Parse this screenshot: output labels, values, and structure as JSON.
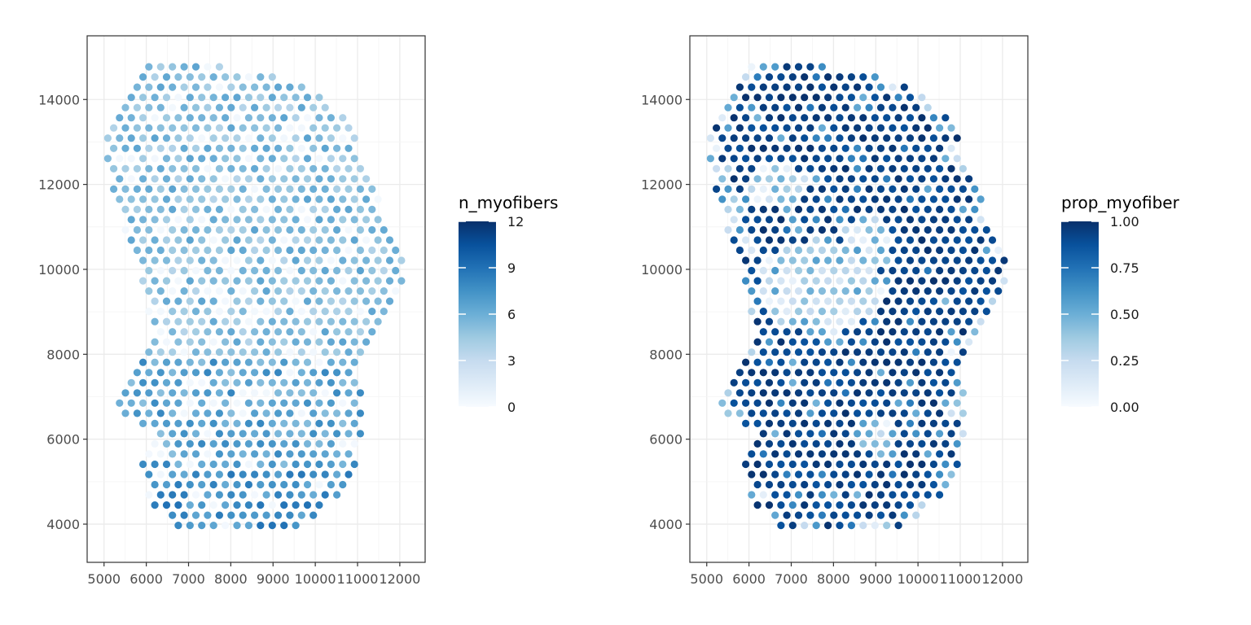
{
  "chart_data": [
    {
      "type": "scatter",
      "title": "",
      "xlabel": "",
      "ylabel": "",
      "xlim": [
        4600,
        12600
      ],
      "ylim": [
        3100,
        15500
      ],
      "x_ticks": [
        5000,
        6000,
        7000,
        8000,
        9000,
        10000,
        11000,
        12000
      ],
      "x_tick_labels": [
        "5000",
        "6000",
        "7000",
        "8000",
        "9000",
        "10000",
        "11000",
        "12000"
      ],
      "y_ticks": [
        4000,
        6000,
        8000,
        10000,
        12000,
        14000
      ],
      "y_tick_labels": [
        "4000",
        "6000",
        "8000",
        "10000",
        "12000",
        "14000"
      ],
      "grid": true,
      "color_variable": "n_myofibers",
      "colorbar": {
        "title": "n_myofibers",
        "range": [
          0,
          12
        ],
        "ticks": [
          0,
          3,
          6,
          9,
          12
        ],
        "tick_labels": [
          "0",
          "3",
          "6",
          "9",
          "12"
        ],
        "low_color": "#f7fbff",
        "high_color": "#08306b"
      },
      "spot_grid": {
        "x_start": 4950,
        "x_step": 278,
        "y_start": 3730,
        "y_step": 240,
        "note_values": "values represent the mapped color value at each tissue spot"
      },
      "legend_position": "right"
    },
    {
      "type": "scatter",
      "title": "",
      "xlabel": "",
      "ylabel": "",
      "xlim": [
        4600,
        12600
      ],
      "ylim": [
        3100,
        15500
      ],
      "x_ticks": [
        5000,
        6000,
        7000,
        8000,
        9000,
        10000,
        11000,
        12000
      ],
      "x_tick_labels": [
        "5000",
        "6000",
        "7000",
        "8000",
        "9000",
        "10000",
        "11000",
        "12000"
      ],
      "y_ticks": [
        4000,
        6000,
        8000,
        10000,
        12000,
        14000
      ],
      "y_tick_labels": [
        "4000",
        "6000",
        "8000",
        "10000",
        "12000",
        "14000"
      ],
      "grid": true,
      "color_variable": "prop_myofiber",
      "colorbar": {
        "title": "prop_myofiber",
        "range": [
          0,
          1
        ],
        "ticks": [
          0,
          0.25,
          0.5,
          0.75,
          1
        ],
        "tick_labels": [
          "0.00",
          "0.25",
          "0.50",
          "0.75",
          "1.00"
        ],
        "low_color": "#f7fbff",
        "high_color": "#08306b"
      },
      "legend_position": "right"
    }
  ],
  "colors": {
    "palette": [
      "#f7fbff",
      "#deebf7",
      "#c6dbef",
      "#9ecae1",
      "#6baed6",
      "#4292c6",
      "#2171b5",
      "#08519c",
      "#08306b"
    ],
    "panel_border": "#333333",
    "grid": "#ebebeb"
  }
}
